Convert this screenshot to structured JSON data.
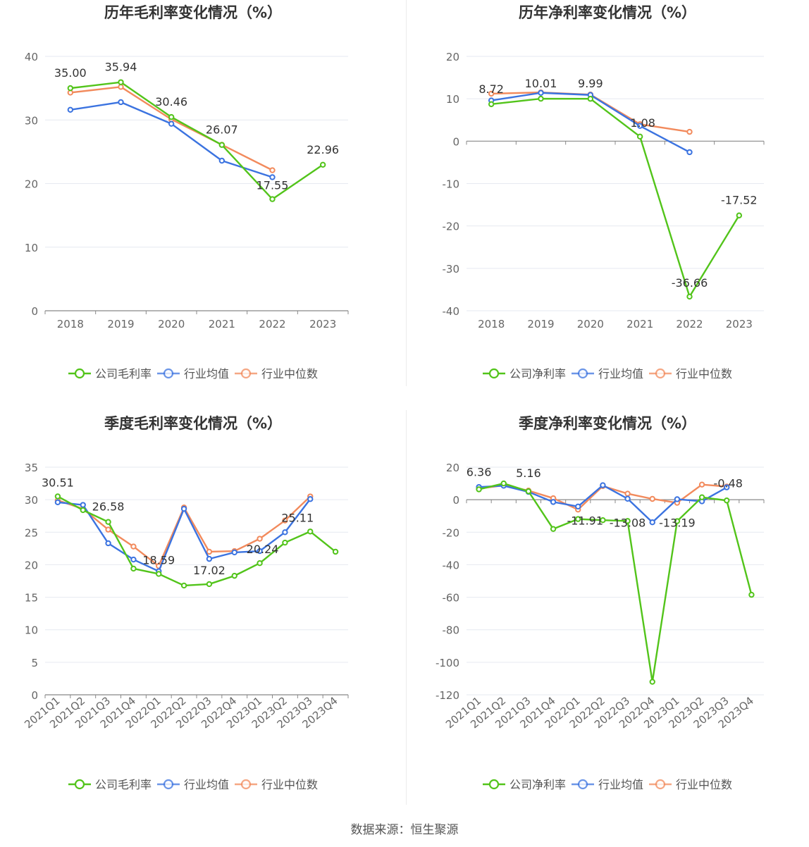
{
  "source_text": "数据来源：恒生聚源",
  "colors": {
    "company": "#52c41a",
    "industry_avg": "#3b73e0",
    "industry_median": "#f28a5c"
  },
  "chart_data": [
    {
      "type": "line",
      "title": "历年毛利率变化情况（%）",
      "categories": [
        "2018",
        "2019",
        "2020",
        "2021",
        "2022",
        "2023"
      ],
      "ylim": [
        0,
        40
      ],
      "yticks": [
        0,
        10,
        20,
        30,
        40
      ],
      "grid": true,
      "legend_position": "bottom",
      "series": [
        {
          "name": "公司毛利率",
          "color": "#52c41a",
          "values": [
            35.0,
            35.94,
            30.46,
            26.07,
            17.55,
            22.96
          ]
        },
        {
          "name": "行业均值",
          "color": "#3b73e0",
          "values": [
            31.6,
            32.8,
            29.4,
            23.6,
            21.0,
            null
          ]
        },
        {
          "name": "行业中位数",
          "color": "#f28a5c",
          "values": [
            34.3,
            35.2,
            30.1,
            26.1,
            22.1,
            null
          ]
        }
      ],
      "data_labels": [
        "35.00",
        "35.94",
        "30.46",
        "26.07",
        "17.55",
        "22.96"
      ]
    },
    {
      "type": "line",
      "title": "历年净利率变化情况（%）",
      "categories": [
        "2018",
        "2019",
        "2020",
        "2021",
        "2022",
        "2023"
      ],
      "ylim": [
        -40,
        20
      ],
      "yticks": [
        -40,
        -30,
        -20,
        -10,
        0,
        10,
        20
      ],
      "grid": true,
      "legend_position": "bottom",
      "series": [
        {
          "name": "公司净利率",
          "color": "#52c41a",
          "values": [
            8.72,
            10.01,
            9.99,
            1.08,
            -36.66,
            -17.52
          ]
        },
        {
          "name": "行业均值",
          "color": "#3b73e0",
          "values": [
            9.6,
            11.4,
            10.9,
            3.6,
            -2.6,
            null
          ]
        },
        {
          "name": "行业中位数",
          "color": "#f28a5c",
          "values": [
            11.2,
            11.5,
            11.0,
            4.0,
            2.2,
            null
          ]
        }
      ],
      "data_labels": [
        "8.72",
        "10.01",
        "9.99",
        "1.08",
        "-36.66",
        "-17.52"
      ]
    },
    {
      "type": "line",
      "title": "季度毛利率变化情况（%）",
      "categories": [
        "2021Q1",
        "2021Q2",
        "2021Q3",
        "2021Q4",
        "2022Q1",
        "2022Q2",
        "2022Q3",
        "2022Q4",
        "2023Q1",
        "2023Q2",
        "2023Q3",
        "2023Q4"
      ],
      "ylim": [
        0,
        35
      ],
      "yticks": [
        0,
        5,
        10,
        15,
        20,
        25,
        30,
        35
      ],
      "grid": true,
      "legend_position": "bottom",
      "series": [
        {
          "name": "公司毛利率",
          "color": "#52c41a",
          "values": [
            30.51,
            28.4,
            26.58,
            19.4,
            18.59,
            16.8,
            17.02,
            18.3,
            20.24,
            23.4,
            25.11,
            22.0
          ]
        },
        {
          "name": "行业均值",
          "color": "#3b73e0",
          "values": [
            29.6,
            29.2,
            23.3,
            20.8,
            19.0,
            28.6,
            20.9,
            21.9,
            22.1,
            25.0,
            30.1,
            null
          ]
        },
        {
          "name": "行业中位数",
          "color": "#f28a5c",
          "values": [
            29.9,
            28.6,
            25.4,
            22.8,
            19.8,
            28.8,
            22.0,
            22.1,
            24.0,
            26.8,
            30.5,
            null
          ]
        }
      ],
      "data_labels": [
        "30.51",
        "",
        "26.58",
        "",
        "18.59",
        "",
        "17.02",
        "",
        "20.24",
        "",
        "25.11",
        ""
      ]
    },
    {
      "type": "line",
      "title": "季度净利率变化情况（%）",
      "categories": [
        "2021Q1",
        "2021Q2",
        "2021Q3",
        "2021Q4",
        "2022Q1",
        "2022Q2",
        "2022Q3",
        "2022Q4",
        "2023Q1",
        "2023Q2",
        "2023Q3",
        "2023Q4"
      ],
      "ylim": [
        -120,
        20
      ],
      "yticks": [
        -120,
        -100,
        -80,
        -60,
        -40,
        -20,
        0,
        20
      ],
      "grid": true,
      "legend_position": "bottom",
      "series": [
        {
          "name": "公司净利率",
          "color": "#52c41a",
          "values": [
            6.36,
            10.0,
            5.16,
            -18.0,
            -11.91,
            -12.6,
            -13.08,
            -112.0,
            -13.19,
            1.5,
            -0.48,
            -58.5
          ]
        },
        {
          "name": "行业均值",
          "color": "#3b73e0",
          "values": [
            7.8,
            8.6,
            4.8,
            -1.4,
            -4.2,
            8.9,
            0.6,
            -13.9,
            0.3,
            -1.0,
            7.6,
            null
          ]
        },
        {
          "name": "行业中位数",
          "color": "#f28a5c",
          "values": [
            6.8,
            8.8,
            5.6,
            0.9,
            -6.1,
            8.4,
            3.7,
            0.5,
            -1.9,
            9.3,
            8.1,
            null
          ]
        }
      ],
      "data_labels": [
        "6.36",
        "",
        "5.16",
        "",
        "-11.91",
        "",
        "-13.08",
        "",
        "-13.19",
        "",
        "-0.48",
        ""
      ]
    }
  ]
}
